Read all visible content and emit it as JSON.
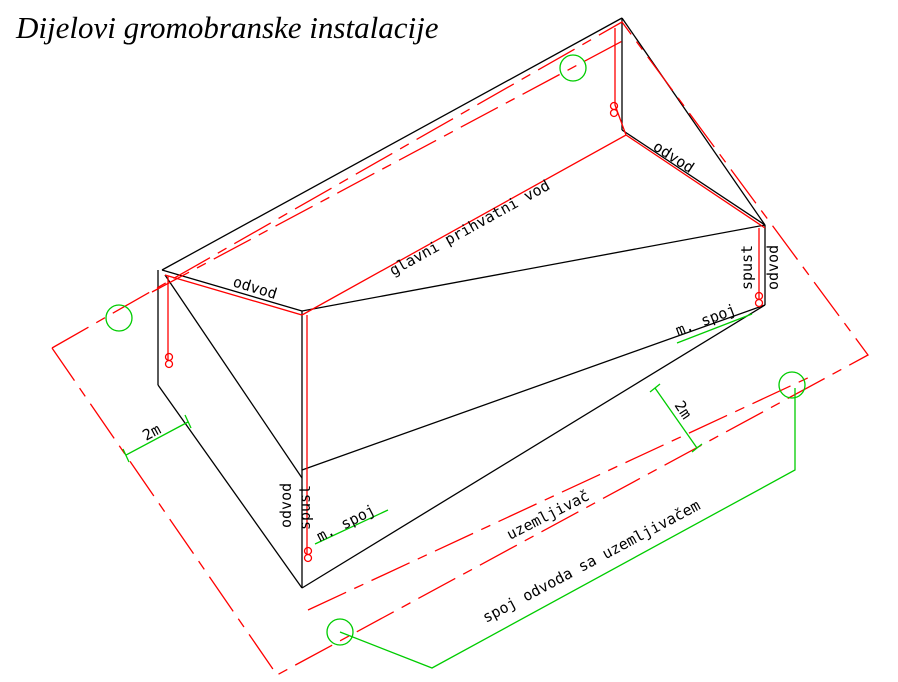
{
  "title": "Dijelovi gromobranske instalacije",
  "labels": {
    "glavni_vod": "glavni prihvatni vod",
    "odvod_left": "odvod",
    "odvod_right": "odvod",
    "odvod_front": "odvod",
    "odvod_back": "odvod",
    "spust_front": "spust",
    "spust_back": "spust",
    "m_spoj_front": "m. spoj",
    "m_spoj_back": "m. spoj",
    "uzemljivac": "uzemljivač",
    "spoj_odvoda": "spoj odvoda sa uzemljivačem",
    "dim_left": "2m",
    "dim_right": "2m"
  },
  "colors": {
    "structure": "#000000",
    "lightning_conductor": "#ff0000",
    "connection_and_dimension": "#00cc00"
  }
}
